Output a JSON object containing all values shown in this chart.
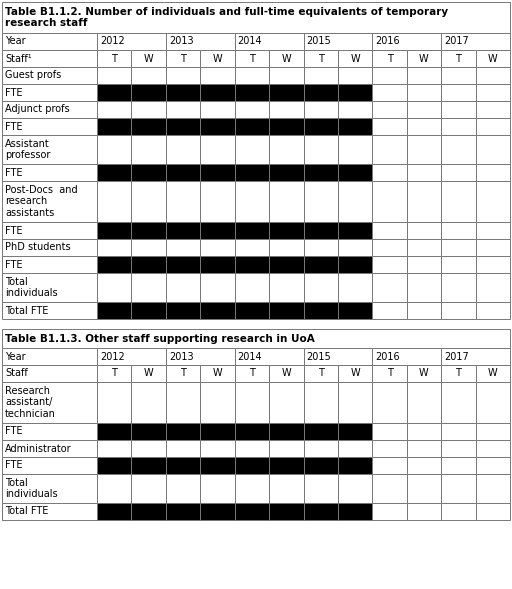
{
  "table1_title_line1": "Table B1.1.2. Number of individuals and full-time equivalents of temporary",
  "table1_title_line2": "research staff",
  "table2_title": "Table B1.1.3. Other staff supporting research in UoA",
  "years": [
    "2012",
    "2013",
    "2014",
    "2015",
    "2016",
    "2017"
  ],
  "col_headers": [
    "T",
    "W",
    "T",
    "W",
    "T",
    "W",
    "T",
    "W",
    "T",
    "W",
    "T",
    "W"
  ],
  "table1_rows": [
    {
      "label": "Year",
      "type": "year_header",
      "n_lines": 1
    },
    {
      "label": "Staff¹",
      "type": "staff_header",
      "n_lines": 1
    },
    {
      "label": "Guest profs",
      "type": "data",
      "black_cols": [],
      "n_lines": 1
    },
    {
      "label": "FTE",
      "type": "data",
      "black_cols": [
        0,
        1,
        2,
        3,
        4,
        5,
        6,
        7
      ],
      "n_lines": 1
    },
    {
      "label": "Adjunct profs",
      "type": "data",
      "black_cols": [],
      "n_lines": 1
    },
    {
      "label": "FTE",
      "type": "data",
      "black_cols": [
        0,
        1,
        2,
        3,
        4,
        5,
        6,
        7
      ],
      "n_lines": 1
    },
    {
      "label": "Assistant\nprofessor",
      "type": "data",
      "black_cols": [],
      "n_lines": 2
    },
    {
      "label": "FTE",
      "type": "data",
      "black_cols": [
        0,
        1,
        2,
        3,
        4,
        5,
        6,
        7
      ],
      "n_lines": 1
    },
    {
      "label": "Post-Docs  and\nresearch\nassistants",
      "type": "data",
      "black_cols": [],
      "n_lines": 3
    },
    {
      "label": "FTE",
      "type": "data",
      "black_cols": [
        0,
        1,
        2,
        3,
        4,
        5,
        6,
        7
      ],
      "n_lines": 1
    },
    {
      "label": "PhD students",
      "type": "data",
      "black_cols": [],
      "n_lines": 1
    },
    {
      "label": "FTE",
      "type": "data",
      "black_cols": [
        0,
        1,
        2,
        3,
        4,
        5,
        6,
        7
      ],
      "n_lines": 1
    },
    {
      "label": "Total\nindividuals",
      "type": "data",
      "black_cols": [],
      "n_lines": 2
    },
    {
      "label": "Total FTE",
      "type": "data",
      "black_cols": [
        0,
        1,
        2,
        3,
        4,
        5,
        6,
        7
      ],
      "n_lines": 1
    }
  ],
  "table2_rows": [
    {
      "label": "Year",
      "type": "year_header",
      "n_lines": 1
    },
    {
      "label": "Staff",
      "type": "staff_header",
      "n_lines": 1
    },
    {
      "label": "Research\nassistant/\ntechnician",
      "type": "data",
      "black_cols": [],
      "n_lines": 3
    },
    {
      "label": "FTE",
      "type": "data",
      "black_cols": [
        0,
        1,
        2,
        3,
        4,
        5,
        6,
        7
      ],
      "n_lines": 1
    },
    {
      "label": "Administrator",
      "type": "data",
      "black_cols": [],
      "n_lines": 1
    },
    {
      "label": "FTE",
      "type": "data",
      "black_cols": [
        0,
        1,
        2,
        3,
        4,
        5,
        6,
        7
      ],
      "n_lines": 1
    },
    {
      "label": "Total\nindividuals",
      "type": "data",
      "black_cols": [],
      "n_lines": 2
    },
    {
      "label": "Total FTE",
      "type": "data",
      "black_cols": [
        0,
        1,
        2,
        3,
        4,
        5,
        6,
        7
      ],
      "n_lines": 1
    }
  ],
  "black_color": "#000000",
  "white_color": "#ffffff",
  "border_color": "#777777",
  "title_fontsize": 7.5,
  "cell_fontsize": 7.0,
  "background_color": "#ffffff"
}
